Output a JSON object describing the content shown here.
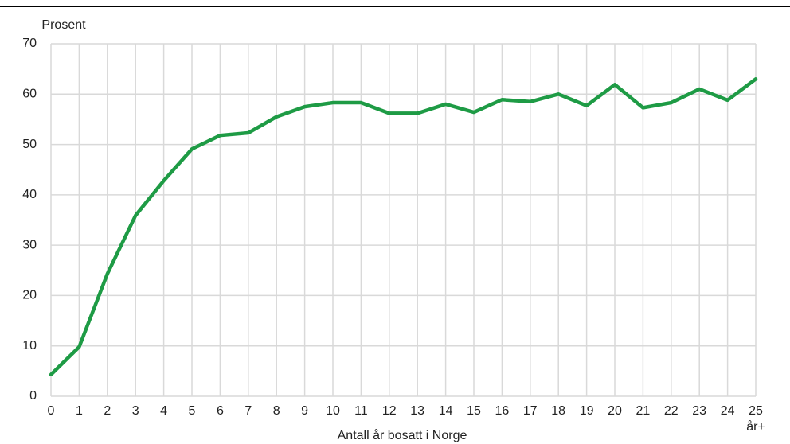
{
  "chart_data": {
    "type": "line",
    "y_label": "Prosent",
    "x_label": "Antall år bosatt i Norge",
    "categories": [
      "0",
      "1",
      "2",
      "3",
      "4",
      "5",
      "6",
      "7",
      "8",
      "9",
      "10",
      "11",
      "12",
      "13",
      "14",
      "15",
      "16",
      "17",
      "18",
      "19",
      "20",
      "21",
      "22",
      "23",
      "24",
      "25 år+"
    ],
    "series": [
      {
        "color": "#1e9b45",
        "values": [
          4.3,
          9.8,
          24.3,
          35.9,
          42.8,
          49.1,
          51.8,
          52.3,
          55.5,
          57.5,
          58.3,
          58.3,
          56.2,
          56.2,
          58.0,
          56.4,
          58.9,
          58.5,
          60.0,
          57.7,
          61.9,
          57.3,
          58.3,
          61.0,
          58.8,
          63.0
        ]
      }
    ],
    "ylim": [
      0,
      70
    ],
    "yticks": [
      0,
      10,
      20,
      30,
      40,
      50,
      60,
      70
    ],
    "grid": true
  }
}
